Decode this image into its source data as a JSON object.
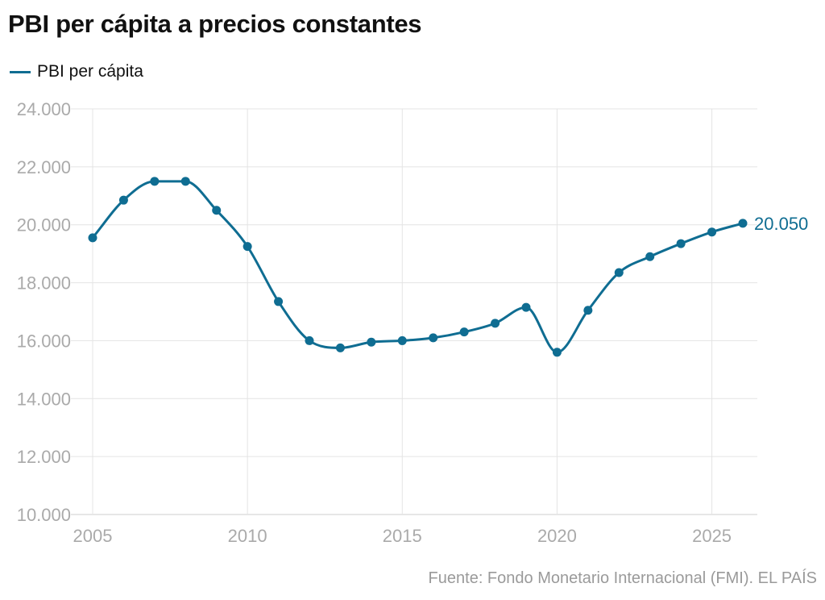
{
  "colors": {
    "series": "#0f6d92",
    "grid": "#e4e4e4",
    "tick_label": "#aaaaaa",
    "source": "#9a9a9a"
  },
  "source": "Fuente: Fondo Monetario Internacional (FMI). EL PAÍS",
  "chart_data": {
    "type": "line",
    "title": "PBI per cápita a precios constantes",
    "xlabel": "",
    "ylabel": "",
    "legend_position": "top-left",
    "grid": true,
    "smooth": true,
    "markers": true,
    "xlim": [
      2005,
      2026
    ],
    "ylim": [
      10000,
      24000
    ],
    "x_ticks": [
      2005,
      2010,
      2015,
      2020,
      2025
    ],
    "x_tick_labels": [
      "2005",
      "2010",
      "2015",
      "2020",
      "2025"
    ],
    "y_ticks": [
      10000,
      12000,
      14000,
      16000,
      18000,
      20000,
      22000,
      24000
    ],
    "y_tick_labels": [
      "10.000",
      "12.000",
      "14.000",
      "16.000",
      "18.000",
      "20.000",
      "22.000",
      "24.000"
    ],
    "x": [
      2005,
      2006,
      2007,
      2008,
      2009,
      2010,
      2011,
      2012,
      2013,
      2014,
      2015,
      2016,
      2017,
      2018,
      2019,
      2020,
      2021,
      2022,
      2023,
      2024,
      2025,
      2026
    ],
    "series": [
      {
        "name": "PBI per cápita",
        "values": [
          19550,
          20850,
          21500,
          21500,
          20500,
          19250,
          17350,
          16000,
          15750,
          15950,
          16000,
          16100,
          16300,
          16600,
          17150,
          15600,
          17050,
          18350,
          18900,
          19350,
          19750,
          20050
        ]
      }
    ],
    "end_label": "20.050"
  }
}
